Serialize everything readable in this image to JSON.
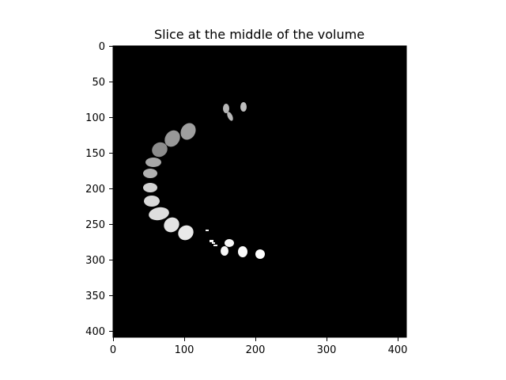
{
  "figure": {
    "title": "Slice at the middle of the volume"
  },
  "image": {
    "kind": "grayscale segmentation slice",
    "background_color": "#000000",
    "size": [
      410,
      410
    ],
    "x_ticks": [
      0,
      100,
      200,
      300,
      400
    ],
    "y_ticks": [
      0,
      50,
      100,
      150,
      200,
      250,
      300,
      350,
      400
    ],
    "labeled_regions_count": 19
  }
}
